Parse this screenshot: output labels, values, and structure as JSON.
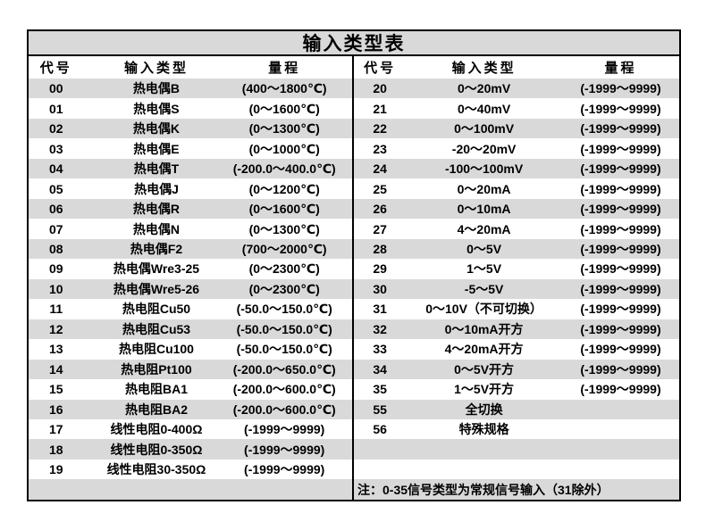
{
  "table": {
    "title": "输入类型表",
    "columns": {
      "code": "代号",
      "type": "输入类型",
      "range": "量程"
    },
    "left_rows": [
      [
        "00",
        "热电偶B",
        "(400～1800℃)"
      ],
      [
        "01",
        "热电偶S",
        "(0～1600℃)"
      ],
      [
        "02",
        "热电偶K",
        "(0～1300℃)"
      ],
      [
        "03",
        "热电偶E",
        "(0～1000℃)"
      ],
      [
        "04",
        "热电偶T",
        "(-200.0～400.0℃)"
      ],
      [
        "05",
        "热电偶J",
        "(0～1200℃)"
      ],
      [
        "06",
        "热电偶R",
        "(0～1600℃)"
      ],
      [
        "07",
        "热电偶N",
        "(0～1300℃)"
      ],
      [
        "08",
        "热电偶F2",
        "(700～2000℃)"
      ],
      [
        "09",
        "热电偶Wre3-25",
        "(0～2300℃)"
      ],
      [
        "10",
        "热电偶Wre5-26",
        "(0～2300℃)"
      ],
      [
        "11",
        "热电阻Cu50",
        "(-50.0～150.0℃)"
      ],
      [
        "12",
        "热电阻Cu53",
        "(-50.0～150.0℃)"
      ],
      [
        "13",
        "热电阻Cu100",
        "(-50.0～150.0℃)"
      ],
      [
        "14",
        "热电阻Pt100",
        "(-200.0～650.0℃)"
      ],
      [
        "15",
        "热电阻BA1",
        "(-200.0～600.0℃)"
      ],
      [
        "16",
        "热电阻BA2",
        "(-200.0～600.0℃)"
      ],
      [
        "17",
        "线性电阻0-400Ω",
        "(-1999～9999)"
      ],
      [
        "18",
        "线性电阻0-350Ω",
        "(-1999～9999)"
      ],
      [
        "19",
        "线性电阻30-350Ω",
        "(-1999～9999)"
      ],
      [
        "",
        "",
        ""
      ]
    ],
    "right_rows": [
      [
        "20",
        "0～20mV",
        "(-1999～9999)"
      ],
      [
        "21",
        "0～40mV",
        "(-1999～9999)"
      ],
      [
        "22",
        "0～100mV",
        "(-1999～9999)"
      ],
      [
        "23",
        "-20～20mV",
        "(-1999～9999)"
      ],
      [
        "24",
        "-100～100mV",
        "(-1999～9999)"
      ],
      [
        "25",
        "0～20mA",
        "(-1999～9999)"
      ],
      [
        "26",
        "0～10mA",
        "(-1999～9999)"
      ],
      [
        "27",
        "4～20mA",
        "(-1999～9999)"
      ],
      [
        "28",
        "0～5V",
        "(-1999～9999)"
      ],
      [
        "29",
        "1～5V",
        "(-1999～9999)"
      ],
      [
        "30",
        "-5～5V",
        "(-1999～9999)"
      ],
      [
        "31",
        "0～10V（不可切换）",
        "(-1999～9999)"
      ],
      [
        "32",
        "0～10mA开方",
        "(-1999～9999)"
      ],
      [
        "33",
        "4～20mA开方",
        "(-1999～9999)"
      ],
      [
        "34",
        "0～5V开方",
        "(-1999～9999)"
      ],
      [
        "35",
        "1～5V开方",
        "(-1999～9999)"
      ],
      [
        "55",
        "全切换",
        ""
      ],
      [
        "56",
        "特殊规格",
        ""
      ],
      [
        "",
        "",
        ""
      ],
      [
        "",
        "",
        ""
      ]
    ],
    "note": "注：0-35信号类型为常规信号输入（31除外）",
    "colors": {
      "stripe": "#d9d9d9",
      "border": "#000000",
      "background": "#ffffff",
      "text": "#000000"
    }
  }
}
